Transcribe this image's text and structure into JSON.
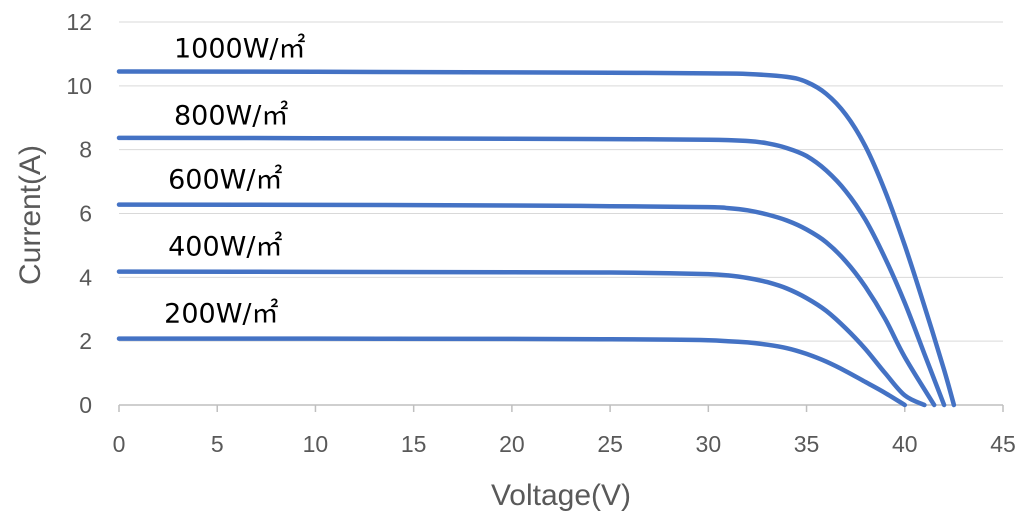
{
  "chart_data": {
    "type": "line",
    "xlabel": "Voltage(V)",
    "ylabel": "Current(A)",
    "xlim": [
      0,
      45
    ],
    "ylim": [
      0,
      12
    ],
    "x_ticks": [
      "0",
      "5",
      "10",
      "15",
      "20",
      "25",
      "30",
      "35",
      "40",
      "45"
    ],
    "y_ticks": [
      "0",
      "2",
      "4",
      "6",
      "8",
      "10",
      "12"
    ],
    "grid": "horizontal",
    "line_color": "#4472c4",
    "series": [
      {
        "name": "1000W/㎡",
        "points": [
          [
            0,
            10.45
          ],
          [
            10,
            10.44
          ],
          [
            20,
            10.42
          ],
          [
            25,
            10.41
          ],
          [
            30,
            10.39
          ],
          [
            32,
            10.37
          ],
          [
            34,
            10.28
          ],
          [
            35,
            10.12
          ],
          [
            36,
            9.75
          ],
          [
            37,
            9.1
          ],
          [
            38,
            8.1
          ],
          [
            39,
            6.7
          ],
          [
            40,
            5.0
          ],
          [
            41,
            3.1
          ],
          [
            42,
            1.1
          ],
          [
            42.5,
            0
          ]
        ]
      },
      {
        "name": "800W/㎡",
        "points": [
          [
            0,
            8.37
          ],
          [
            10,
            8.36
          ],
          [
            20,
            8.34
          ],
          [
            25,
            8.33
          ],
          [
            30,
            8.31
          ],
          [
            32,
            8.27
          ],
          [
            33,
            8.2
          ],
          [
            34,
            8.05
          ],
          [
            35,
            7.8
          ],
          [
            36,
            7.35
          ],
          [
            37,
            6.7
          ],
          [
            38,
            5.8
          ],
          [
            39,
            4.6
          ],
          [
            40,
            3.2
          ],
          [
            41,
            1.6
          ],
          [
            42,
            0
          ]
        ]
      },
      {
        "name": "600W/㎡",
        "points": [
          [
            0,
            6.28
          ],
          [
            10,
            6.27
          ],
          [
            20,
            6.25
          ],
          [
            25,
            6.23
          ],
          [
            30,
            6.2
          ],
          [
            31,
            6.17
          ],
          [
            32,
            6.1
          ],
          [
            33,
            5.97
          ],
          [
            34,
            5.78
          ],
          [
            35,
            5.5
          ],
          [
            36,
            5.1
          ],
          [
            37,
            4.5
          ],
          [
            38,
            3.7
          ],
          [
            39,
            2.7
          ],
          [
            40,
            1.5
          ],
          [
            41.5,
            0
          ]
        ]
      },
      {
        "name": "400W/㎡",
        "points": [
          [
            0,
            4.18
          ],
          [
            10,
            4.17
          ],
          [
            20,
            4.16
          ],
          [
            25,
            4.15
          ],
          [
            28,
            4.13
          ],
          [
            30,
            4.1
          ],
          [
            31,
            4.06
          ],
          [
            32,
            3.98
          ],
          [
            33,
            3.85
          ],
          [
            34,
            3.65
          ],
          [
            35,
            3.35
          ],
          [
            36,
            2.95
          ],
          [
            37,
            2.4
          ],
          [
            38,
            1.75
          ],
          [
            39,
            1.0
          ],
          [
            40,
            0.3
          ],
          [
            41,
            0
          ]
        ]
      },
      {
        "name": "200W/㎡",
        "points": [
          [
            0,
            2.08
          ],
          [
            10,
            2.08
          ],
          [
            20,
            2.07
          ],
          [
            25,
            2.06
          ],
          [
            28,
            2.05
          ],
          [
            30,
            2.03
          ],
          [
            31,
            2.0
          ],
          [
            32,
            1.96
          ],
          [
            33,
            1.89
          ],
          [
            34,
            1.78
          ],
          [
            35,
            1.6
          ],
          [
            36,
            1.36
          ],
          [
            37,
            1.06
          ],
          [
            38,
            0.72
          ],
          [
            39,
            0.38
          ],
          [
            40,
            0
          ]
        ]
      }
    ],
    "series_labels_at": [
      [
        2.8,
        11.2
      ],
      [
        2.8,
        9.1
      ],
      [
        2.5,
        7.1
      ],
      [
        2.5,
        5.0
      ],
      [
        2.3,
        2.9
      ]
    ]
  }
}
